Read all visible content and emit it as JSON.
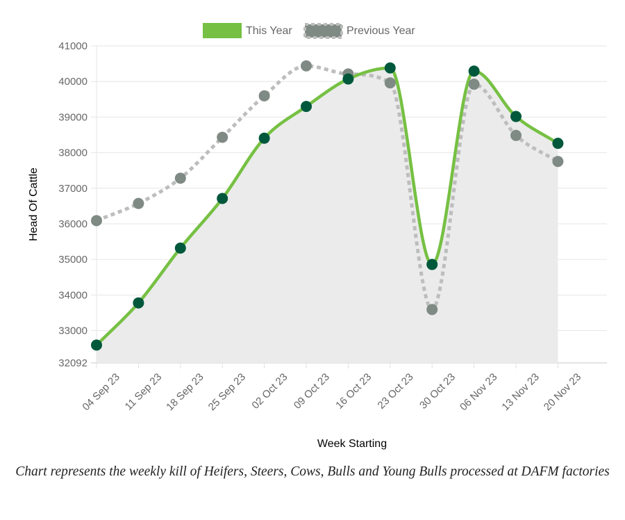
{
  "caption": "Chart represents the weekly kill of Heifers, Steers, Cows, Bulls and Young Bulls processed at DAFM factories",
  "chart_data": {
    "type": "line",
    "title": "",
    "xlabel": "Week Starting",
    "ylabel": "Head Of Cattle",
    "categories": [
      "04 Sep 23",
      "11 Sep 23",
      "18 Sep 23",
      "25 Sep 23",
      "02 Oct 23",
      "09 Oct 23",
      "16 Oct 23",
      "23 Oct 23",
      "30 Oct 23",
      "06 Nov 23",
      "13 Nov 23",
      "20 Nov 23"
    ],
    "ylim": [
      32092,
      41000
    ],
    "yticks": [
      "41000",
      "40000",
      "39000",
      "38000",
      "37000",
      "36000",
      "35000",
      "34000",
      "33000",
      "32092"
    ],
    "ytick_values": [
      41000,
      40000,
      39000,
      38000,
      37000,
      36000,
      35000,
      34000,
      33000,
      32092
    ],
    "grid": true,
    "legend": "top-center",
    "series": [
      {
        "name": "This Year",
        "values": [
          32592,
          33778,
          35318,
          36712,
          38406,
          39298,
          40070,
          40380,
          34858,
          40292,
          39016,
          38262
        ],
        "line_color": "#76c043",
        "point_color": "#00583c",
        "fill": "#ebebeb",
        "dashed": false
      },
      {
        "name": "Previous Year",
        "values": [
          36090,
          36572,
          37282,
          38432,
          39596,
          40438,
          40212,
          39960,
          33592,
          39922,
          38484,
          37752
        ],
        "line_color": "#bdbdbd",
        "point_color": "#7f8a84",
        "dashed": true
      }
    ]
  }
}
